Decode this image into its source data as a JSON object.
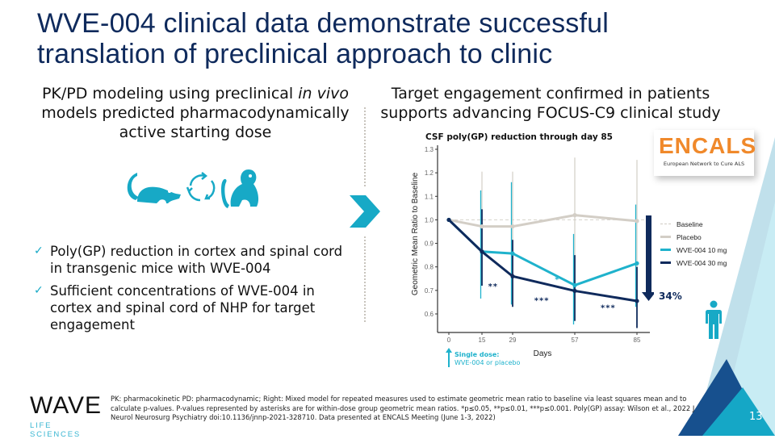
{
  "slide": {
    "title": "WVE-004 clinical data demonstrate successful translation of preclinical approach to clinic",
    "page_number": "13"
  },
  "left": {
    "heading_pre": "PK/PD modeling using preclinical ",
    "heading_italic": "in vivo",
    "heading_post": " models predicted pharmacodynamically active starting dose",
    "icons": [
      "mouse-icon",
      "cycle-arrows-icon",
      "monkey-icon"
    ],
    "bullets": [
      "Poly(GP) reduction in cortex and spinal cord in transgenic mice with WVE-004",
      "Sufficient concentrations of WVE-004 in cortex and spinal cord of NHP for target engagement"
    ]
  },
  "right": {
    "heading": "Target engagement confirmed in patients supports advancing FOCUS-C9 clinical study",
    "encals": {
      "name": "ENCALS",
      "subtitle": "European Network to Cure ALS"
    },
    "reduction_label": "34%",
    "dose_note_bold": "Single dose:",
    "dose_note": "WVE-004 or placebo"
  },
  "chart_data": {
    "type": "line",
    "title": "CSF poly(GP) reduction through day 85",
    "xlabel": "Days",
    "ylabel": "Geometric Mean Ratio to Baseline",
    "x": [
      0,
      15,
      29,
      57,
      85
    ],
    "x_ticks": [
      "0",
      "15",
      "29",
      "57",
      "85"
    ],
    "y_ticks": [
      "0.6",
      "0.7",
      "0.8",
      "0.9",
      "1.0",
      "1.1",
      "1.2",
      "1.3"
    ],
    "ylim": [
      0.5,
      1.3
    ],
    "xlim": [
      -4,
      90
    ],
    "baseline": 1.0,
    "legend_position": "right",
    "series": [
      {
        "name": "Baseline",
        "color": "#d6d2cc",
        "style": "dashed",
        "values": [
          1.0,
          1.0,
          1.0,
          1.0,
          1.0
        ]
      },
      {
        "name": "Placebo",
        "color": "#d3cec6",
        "values": [
          1.0,
          0.972,
          0.972,
          1.02,
          0.995
        ],
        "err_low": [
          null,
          0.78,
          0.8,
          0.82,
          0.8
        ],
        "err_high": [
          null,
          1.205,
          1.205,
          1.265,
          1.255
        ]
      },
      {
        "name": "WVE-004 10 mg",
        "color": "#1fb2cc",
        "values": [
          1.0,
          0.865,
          0.857,
          0.722,
          0.815
        ],
        "err_low": [
          null,
          0.665,
          0.64,
          0.555,
          0.63
        ],
        "err_high": [
          null,
          1.125,
          1.16,
          0.94,
          1.065
        ]
      },
      {
        "name": "WVE-004 30 mg",
        "color": "#0f2a5c",
        "values": [
          1.0,
          0.865,
          0.76,
          0.698,
          0.655
        ],
        "err_low": [
          null,
          0.72,
          0.63,
          0.57,
          0.54
        ],
        "err_high": [
          null,
          1.045,
          0.915,
          0.85,
          0.8
        ]
      }
    ],
    "annotations": [
      {
        "text": "**",
        "x": 20,
        "y": 0.72,
        "color": "#0f2a5c"
      },
      {
        "text": "*",
        "x": 49,
        "y": 0.75,
        "color": "#1fb2cc"
      },
      {
        "text": "***",
        "x": 42,
        "y": 0.66,
        "color": "#0f2a5c"
      },
      {
        "text": "***",
        "x": 72,
        "y": 0.63,
        "color": "#0f2a5c"
      }
    ]
  },
  "footer": {
    "logo_main": "WAVE",
    "logo_sub": "LIFE SCIENCES",
    "footnote": "PK: pharmacokinetic   PD: pharmacodynamic; Right: Mixed model for repeated measures used to estimate geometric mean ratio to baseline via least squares mean and to calculate p-values.  P-values represented by asterisks are for within-dose group geometric mean ratios. *p≤0.05, **p≤0.01, ***p≤0.001.  Poly(GP) assay: Wilson et al., 2022 J Neurol Neurosurg Psychiatry doi:10.1136/jnnp-2021-328710. Data presented at ENCALS Meeting (June 1-3, 2022)"
  },
  "colors": {
    "title": "#0f2a5c",
    "accent": "#1fb2cc",
    "dark_navy": "#0f2a5c",
    "encals_orange": "#f0892b"
  }
}
